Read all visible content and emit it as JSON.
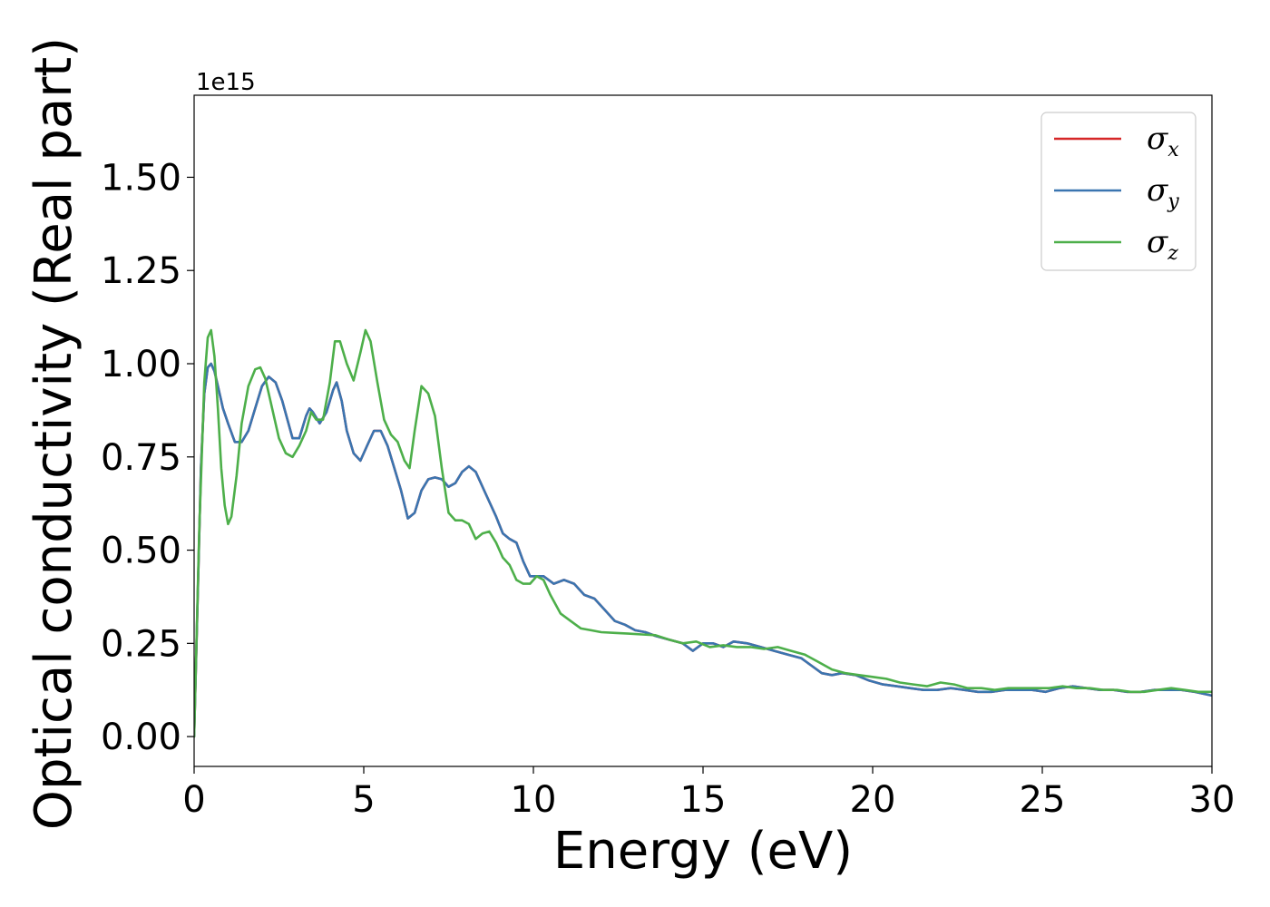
{
  "chart_data": {
    "type": "line",
    "xlabel": "Energy (eV)",
    "ylabel": "Optical conductivity (Real part)",
    "offset_text": "1e15",
    "xlim": [
      0,
      30
    ],
    "ylim": [
      -0.08,
      1.72
    ],
    "xticks": [
      0,
      5,
      10,
      15,
      20,
      25,
      30
    ],
    "xtick_labels": [
      "0",
      "5",
      "10",
      "15",
      "20",
      "25",
      "30"
    ],
    "yticks": [
      0,
      0.25,
      0.5,
      0.75,
      1.0,
      1.25,
      1.5
    ],
    "ytick_labels": [
      "0.00",
      "0.25",
      "0.50",
      "0.75",
      "1.00",
      "1.25",
      "1.50"
    ],
    "grid": false,
    "legend_position": "top-right",
    "series": [
      {
        "name": "σx",
        "symbol": "σ",
        "subscript": "x",
        "color": "#d62728",
        "x": [
          0,
          0.1,
          0.2,
          0.3,
          0.4,
          0.5,
          0.6,
          0.7,
          0.85,
          1.0,
          1.2,
          1.4,
          1.6,
          1.8,
          2.0,
          2.2,
          2.4,
          2.6,
          2.9,
          3.1,
          3.3,
          3.4,
          3.5,
          3.7,
          3.9,
          4.1,
          4.2,
          4.35,
          4.5,
          4.7,
          4.9,
          5.1,
          5.3,
          5.5,
          5.7,
          5.9,
          6.1,
          6.3,
          6.5,
          6.7,
          6.9,
          7.1,
          7.3,
          7.5,
          7.7,
          7.9,
          8.1,
          8.3,
          8.6,
          8.9,
          9.1,
          9.3,
          9.5,
          9.7,
          9.9,
          10.1,
          10.3,
          10.6,
          10.9,
          11.2,
          11.5,
          11.8,
          12.1,
          12.4,
          12.7,
          13.0,
          13.3,
          13.6,
          14.0,
          14.4,
          14.7,
          15.0,
          15.3,
          15.6,
          15.9,
          16.3,
          16.7,
          17.1,
          17.5,
          17.9,
          18.2,
          18.5,
          18.8,
          19.1,
          19.5,
          19.9,
          20.3,
          20.7,
          21.1,
          21.5,
          21.9,
          22.3,
          22.7,
          23.1,
          23.5,
          23.9,
          24.3,
          24.7,
          25.1,
          25.5,
          25.9,
          26.3,
          26.7,
          27.1,
          27.5,
          27.9,
          28.3,
          28.7,
          29.1,
          29.5,
          30.0
        ],
        "values": [
          0,
          0.35,
          0.72,
          0.92,
          0.99,
          1.0,
          0.98,
          0.94,
          0.88,
          0.84,
          0.79,
          0.79,
          0.82,
          0.88,
          0.94,
          0.965,
          0.95,
          0.9,
          0.8,
          0.8,
          0.86,
          0.88,
          0.87,
          0.84,
          0.87,
          0.93,
          0.95,
          0.9,
          0.82,
          0.76,
          0.74,
          0.78,
          0.82,
          0.82,
          0.78,
          0.72,
          0.66,
          0.585,
          0.6,
          0.66,
          0.69,
          0.695,
          0.69,
          0.67,
          0.68,
          0.71,
          0.725,
          0.71,
          0.65,
          0.59,
          0.545,
          0.53,
          0.52,
          0.47,
          0.43,
          0.43,
          0.43,
          0.41,
          0.42,
          0.41,
          0.38,
          0.37,
          0.34,
          0.31,
          0.3,
          0.285,
          0.28,
          0.27,
          0.26,
          0.25,
          0.23,
          0.25,
          0.25,
          0.24,
          0.255,
          0.25,
          0.24,
          0.23,
          0.22,
          0.21,
          0.19,
          0.17,
          0.165,
          0.17,
          0.165,
          0.15,
          0.14,
          0.135,
          0.13,
          0.125,
          0.125,
          0.13,
          0.125,
          0.12,
          0.12,
          0.125,
          0.125,
          0.125,
          0.12,
          0.13,
          0.135,
          0.13,
          0.125,
          0.125,
          0.12,
          0.12,
          0.125,
          0.125,
          0.125,
          0.12,
          0.11
        ]
      },
      {
        "name": "σy",
        "symbol": "σ",
        "subscript": "y",
        "color": "#3a75b0",
        "x": [
          0,
          0.1,
          0.2,
          0.3,
          0.4,
          0.5,
          0.6,
          0.7,
          0.85,
          1.0,
          1.2,
          1.4,
          1.6,
          1.8,
          2.0,
          2.2,
          2.4,
          2.6,
          2.9,
          3.1,
          3.3,
          3.4,
          3.5,
          3.7,
          3.9,
          4.1,
          4.2,
          4.35,
          4.5,
          4.7,
          4.9,
          5.1,
          5.3,
          5.5,
          5.7,
          5.9,
          6.1,
          6.3,
          6.5,
          6.7,
          6.9,
          7.1,
          7.3,
          7.5,
          7.7,
          7.9,
          8.1,
          8.3,
          8.6,
          8.9,
          9.1,
          9.3,
          9.5,
          9.7,
          9.9,
          10.1,
          10.3,
          10.6,
          10.9,
          11.2,
          11.5,
          11.8,
          12.1,
          12.4,
          12.7,
          13.0,
          13.3,
          13.6,
          14.0,
          14.4,
          14.7,
          15.0,
          15.3,
          15.6,
          15.9,
          16.3,
          16.7,
          17.1,
          17.5,
          17.9,
          18.2,
          18.5,
          18.8,
          19.1,
          19.5,
          19.9,
          20.3,
          20.7,
          21.1,
          21.5,
          21.9,
          22.3,
          22.7,
          23.1,
          23.5,
          23.9,
          24.3,
          24.7,
          25.1,
          25.5,
          25.9,
          26.3,
          26.7,
          27.1,
          27.5,
          27.9,
          28.3,
          28.7,
          29.1,
          29.5,
          30.0
        ],
        "values": [
          0,
          0.35,
          0.72,
          0.92,
          0.99,
          1.0,
          0.98,
          0.94,
          0.88,
          0.84,
          0.79,
          0.79,
          0.82,
          0.88,
          0.94,
          0.965,
          0.95,
          0.9,
          0.8,
          0.8,
          0.86,
          0.88,
          0.87,
          0.84,
          0.87,
          0.93,
          0.95,
          0.9,
          0.82,
          0.76,
          0.74,
          0.78,
          0.82,
          0.82,
          0.78,
          0.72,
          0.66,
          0.585,
          0.6,
          0.66,
          0.69,
          0.695,
          0.69,
          0.67,
          0.68,
          0.71,
          0.725,
          0.71,
          0.65,
          0.59,
          0.545,
          0.53,
          0.52,
          0.47,
          0.43,
          0.43,
          0.43,
          0.41,
          0.42,
          0.41,
          0.38,
          0.37,
          0.34,
          0.31,
          0.3,
          0.285,
          0.28,
          0.27,
          0.26,
          0.25,
          0.23,
          0.25,
          0.25,
          0.24,
          0.255,
          0.25,
          0.24,
          0.23,
          0.22,
          0.21,
          0.19,
          0.17,
          0.165,
          0.17,
          0.165,
          0.15,
          0.14,
          0.135,
          0.13,
          0.125,
          0.125,
          0.13,
          0.125,
          0.12,
          0.12,
          0.125,
          0.125,
          0.125,
          0.12,
          0.13,
          0.135,
          0.13,
          0.125,
          0.125,
          0.12,
          0.12,
          0.125,
          0.125,
          0.125,
          0.12,
          0.11
        ]
      },
      {
        "name": "σz",
        "symbol": "σ",
        "subscript": "z",
        "color": "#4daf4a",
        "x": [
          0,
          0.15,
          0.3,
          0.4,
          0.5,
          0.6,
          0.7,
          0.8,
          0.9,
          1.0,
          1.1,
          1.25,
          1.4,
          1.6,
          1.8,
          1.95,
          2.1,
          2.3,
          2.5,
          2.7,
          2.9,
          3.1,
          3.3,
          3.45,
          3.6,
          3.8,
          4.0,
          4.15,
          4.3,
          4.5,
          4.7,
          4.9,
          5.05,
          5.2,
          5.4,
          5.6,
          5.8,
          6.0,
          6.2,
          6.35,
          6.5,
          6.7,
          6.9,
          7.1,
          7.3,
          7.5,
          7.7,
          7.9,
          8.1,
          8.3,
          8.5,
          8.7,
          8.9,
          9.1,
          9.3,
          9.5,
          9.7,
          9.9,
          10.1,
          10.3,
          10.5,
          10.8,
          11.1,
          11.4,
          11.7,
          12.0,
          12.4,
          12.8,
          13.2,
          13.6,
          14.0,
          14.4,
          14.8,
          15.2,
          15.6,
          16.0,
          16.4,
          16.8,
          17.2,
          17.6,
          18.0,
          18.4,
          18.8,
          19.2,
          19.6,
          20.0,
          20.4,
          20.8,
          21.2,
          21.6,
          22.0,
          22.4,
          22.8,
          23.2,
          23.6,
          24.0,
          24.4,
          24.8,
          25.2,
          25.6,
          26.0,
          26.4,
          26.8,
          27.2,
          27.6,
          28.0,
          28.4,
          28.8,
          29.2,
          29.6,
          30.0
        ],
        "values": [
          0,
          0.55,
          0.95,
          1.07,
          1.09,
          1.02,
          0.88,
          0.72,
          0.62,
          0.57,
          0.59,
          0.7,
          0.84,
          0.94,
          0.985,
          0.99,
          0.96,
          0.88,
          0.8,
          0.76,
          0.75,
          0.78,
          0.82,
          0.87,
          0.85,
          0.85,
          0.95,
          1.06,
          1.06,
          1.0,
          0.955,
          1.03,
          1.09,
          1.06,
          0.95,
          0.85,
          0.81,
          0.79,
          0.74,
          0.72,
          0.82,
          0.94,
          0.92,
          0.86,
          0.72,
          0.6,
          0.58,
          0.58,
          0.57,
          0.53,
          0.545,
          0.55,
          0.52,
          0.48,
          0.46,
          0.42,
          0.41,
          0.41,
          0.43,
          0.42,
          0.38,
          0.33,
          0.31,
          0.29,
          0.285,
          0.28,
          0.278,
          0.276,
          0.274,
          0.272,
          0.26,
          0.25,
          0.255,
          0.24,
          0.245,
          0.24,
          0.24,
          0.235,
          0.24,
          0.23,
          0.22,
          0.2,
          0.18,
          0.17,
          0.165,
          0.16,
          0.155,
          0.145,
          0.14,
          0.135,
          0.145,
          0.14,
          0.13,
          0.13,
          0.125,
          0.13,
          0.13,
          0.13,
          0.13,
          0.135,
          0.13,
          0.13,
          0.125,
          0.125,
          0.12,
          0.12,
          0.125,
          0.13,
          0.125,
          0.12,
          0.12
        ]
      }
    ]
  }
}
